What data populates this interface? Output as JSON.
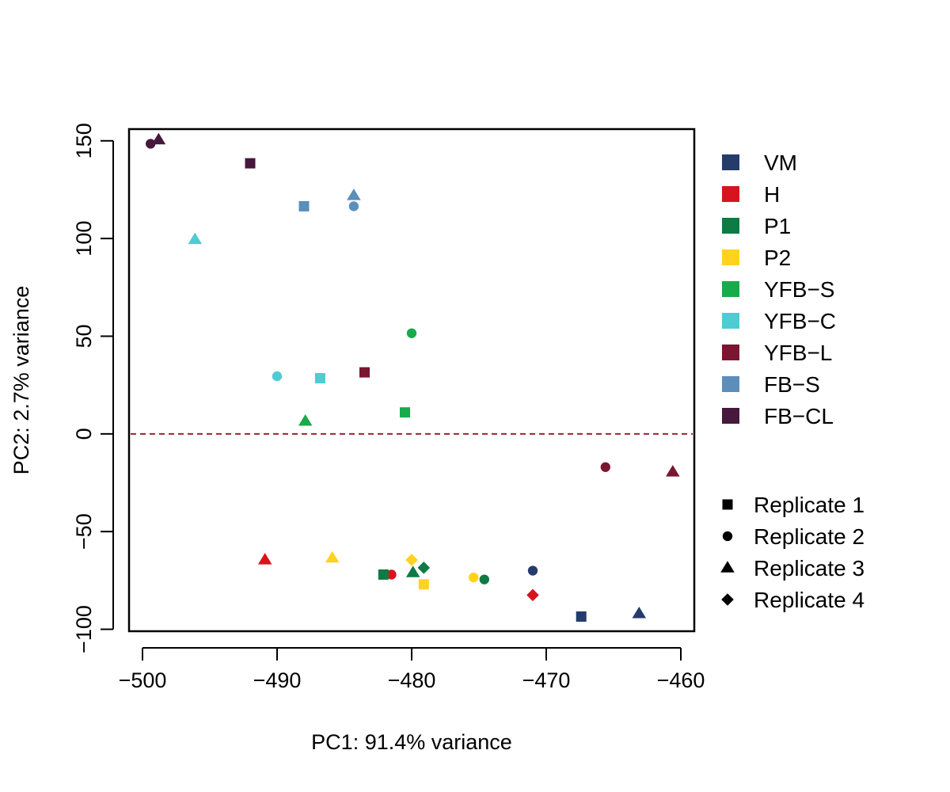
{
  "chart_data": {
    "type": "scatter",
    "title": "",
    "xlabel": "PC1: 91.4% variance",
    "ylabel": "PC2: 2.7% variance",
    "xlim": [
      -501,
      -459
    ],
    "ylim": [
      -101,
      156
    ],
    "x_ticks": [
      -500,
      -490,
      -480,
      -470,
      -460
    ],
    "y_ticks": [
      -100,
      -50,
      0,
      50,
      100,
      150
    ],
    "x_tick_labels": [
      "−500",
      "−490",
      "−480",
      "−470",
      "−460"
    ],
    "y_tick_labels": [
      "−100",
      "−50",
      "0",
      "50",
      "100",
      "150"
    ],
    "reference_line": {
      "y": 0,
      "style": "dashed",
      "color": "#9b2335"
    },
    "grid": false,
    "legend_placement": "right",
    "groups": [
      {
        "name": "VM",
        "color": "#243b6b"
      },
      {
        "name": "H",
        "color": "#d7141d"
      },
      {
        "name": "P1",
        "color": "#0e7a44"
      },
      {
        "name": "P2",
        "color": "#ffd21f"
      },
      {
        "name": "YFB−S",
        "color": "#19aa4b"
      },
      {
        "name": "YFB−C",
        "color": "#4ecbd3"
      },
      {
        "name": "YFB−L",
        "color": "#7a1630"
      },
      {
        "name": "FB−S",
        "color": "#5b8ebb"
      },
      {
        "name": "FB−CL",
        "color": "#46183e"
      }
    ],
    "replicates": [
      {
        "name": "Replicate 1",
        "shape": "square"
      },
      {
        "name": "Replicate 2",
        "shape": "circle"
      },
      {
        "name": "Replicate 3",
        "shape": "triangle"
      },
      {
        "name": "Replicate 4",
        "shape": "diamond"
      }
    ],
    "points": [
      {
        "group": "FB−CL",
        "replicate": "Replicate 2",
        "x": -499.4,
        "y": 148.5
      },
      {
        "group": "FB−CL",
        "replicate": "Replicate 3",
        "x": -498.8,
        "y": 150.5
      },
      {
        "group": "FB−CL",
        "replicate": "Replicate 1",
        "x": -492.0,
        "y": 138.5
      },
      {
        "group": "FB−S",
        "replicate": "Replicate 1",
        "x": -488.0,
        "y": 116.5
      },
      {
        "group": "FB−S",
        "replicate": "Replicate 3",
        "x": -484.3,
        "y": 122.0
      },
      {
        "group": "FB−S",
        "replicate": "Replicate 2",
        "x": -484.3,
        "y": 116.5
      },
      {
        "group": "YFB−C",
        "replicate": "Replicate 3",
        "x": -496.1,
        "y": 99.5
      },
      {
        "group": "YFB−C",
        "replicate": "Replicate 2",
        "x": -490.0,
        "y": 29.5
      },
      {
        "group": "YFB−C",
        "replicate": "Replicate 1",
        "x": -486.8,
        "y": 28.5
      },
      {
        "group": "YFB−L",
        "replicate": "Replicate 1",
        "x": -483.5,
        "y": 31.5
      },
      {
        "group": "YFB−L",
        "replicate": "Replicate 2",
        "x": -465.6,
        "y": -17.0
      },
      {
        "group": "YFB−L",
        "replicate": "Replicate 3",
        "x": -460.6,
        "y": -19.5
      },
      {
        "group": "YFB−S",
        "replicate": "Replicate 2",
        "x": -480.0,
        "y": 51.5
      },
      {
        "group": "YFB−S",
        "replicate": "Replicate 1",
        "x": -480.5,
        "y": 11.0
      },
      {
        "group": "YFB−S",
        "replicate": "Replicate 3",
        "x": -487.9,
        "y": 6.5
      },
      {
        "group": "H",
        "replicate": "Replicate 3",
        "x": -490.9,
        "y": -64.5
      },
      {
        "group": "H",
        "replicate": "Replicate 2",
        "x": -481.5,
        "y": -72.0
      },
      {
        "group": "H",
        "replicate": "Replicate 4",
        "x": -471.0,
        "y": -82.5
      },
      {
        "group": "P2",
        "replicate": "Replicate 3",
        "x": -485.9,
        "y": -63.5
      },
      {
        "group": "P2",
        "replicate": "Replicate 4",
        "x": -480.0,
        "y": -64.5
      },
      {
        "group": "P2",
        "replicate": "Replicate 1",
        "x": -479.1,
        "y": -77.0
      },
      {
        "group": "P2",
        "replicate": "Replicate 2",
        "x": -475.4,
        "y": -73.5
      },
      {
        "group": "P1",
        "replicate": "Replicate 1",
        "x": -482.1,
        "y": -72.0
      },
      {
        "group": "P1",
        "replicate": "Replicate 3",
        "x": -479.9,
        "y": -71.0
      },
      {
        "group": "P1",
        "replicate": "Replicate 4",
        "x": -479.1,
        "y": -68.5
      },
      {
        "group": "P1",
        "replicate": "Replicate 2",
        "x": -474.6,
        "y": -74.5
      },
      {
        "group": "VM",
        "replicate": "Replicate 2",
        "x": -471.0,
        "y": -70.0
      },
      {
        "group": "VM",
        "replicate": "Replicate 1",
        "x": -467.4,
        "y": -93.5
      },
      {
        "group": "VM",
        "replicate": "Replicate 3",
        "x": -463.1,
        "y": -92.0
      }
    ]
  }
}
